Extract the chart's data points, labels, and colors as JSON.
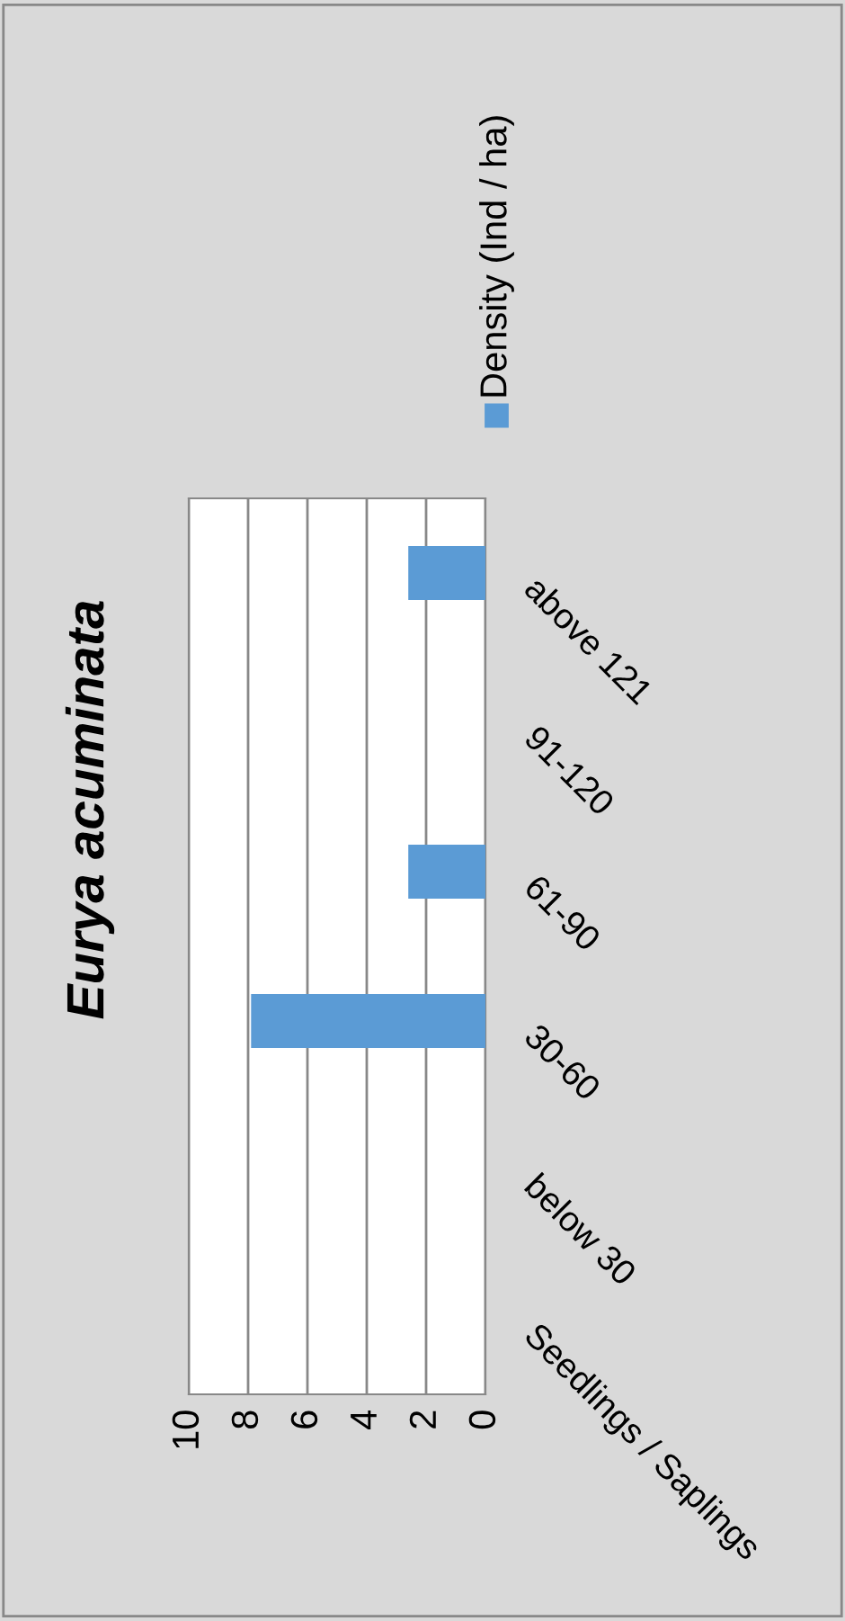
{
  "chart_data": {
    "type": "bar",
    "title": "Eurya acuminata",
    "orientation": "horizontal",
    "categories": [
      "above 121",
      "91-120",
      "61-90",
      "30-60",
      "below 30",
      "Seedlings / Saplings"
    ],
    "series": [
      {
        "name": "Density (Ind / ha)",
        "color": "#5b9bd5",
        "values": [
          2.6,
          0,
          2.6,
          7.9,
          0,
          0
        ]
      }
    ],
    "xlim": [
      10,
      0
    ],
    "xticks": [
      0,
      2,
      4,
      6,
      8,
      10
    ],
    "grid": "x",
    "legend": "right"
  }
}
